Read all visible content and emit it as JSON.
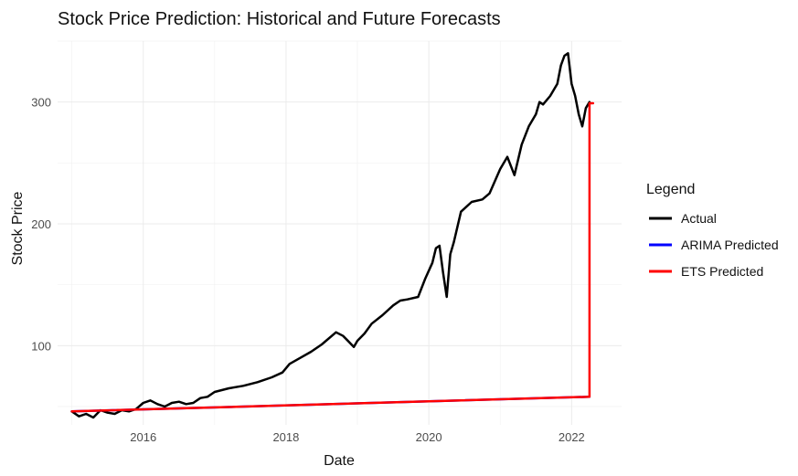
{
  "chart_data": {
    "type": "line",
    "title": "Stock Price Prediction: Historical and Future Forecasts",
    "xlabel": "Date",
    "ylabel": "Stock Price",
    "xlim": [
      2014.8,
      2022.7
    ],
    "ylim": [
      35,
      350
    ],
    "x_ticks": [
      {
        "value": 2016,
        "label": "2016"
      },
      {
        "value": 2018,
        "label": "2018"
      },
      {
        "value": 2020,
        "label": "2020"
      },
      {
        "value": 2022,
        "label": "2022"
      }
    ],
    "y_ticks": [
      {
        "value": 100,
        "label": "100"
      },
      {
        "value": 200,
        "label": "200"
      },
      {
        "value": 300,
        "label": "300"
      }
    ],
    "grid": true,
    "legend": {
      "title": "Legend",
      "position": "right"
    },
    "series": [
      {
        "name": "Actual",
        "color": "#000000",
        "x": [
          2015.0,
          2015.1,
          2015.2,
          2015.3,
          2015.4,
          2015.5,
          2015.6,
          2015.7,
          2015.8,
          2015.9,
          2016.0,
          2016.1,
          2016.2,
          2016.3,
          2016.4,
          2016.5,
          2016.6,
          2016.7,
          2016.8,
          2016.9,
          2017.0,
          2017.2,
          2017.4,
          2017.6,
          2017.8,
          2017.95,
          2018.05,
          2018.2,
          2018.35,
          2018.5,
          2018.7,
          2018.8,
          2018.9,
          2018.95,
          2019.0,
          2019.1,
          2019.2,
          2019.35,
          2019.5,
          2019.6,
          2019.7,
          2019.85,
          2019.95,
          2020.05,
          2020.1,
          2020.15,
          2020.2,
          2020.25,
          2020.3,
          2020.35,
          2020.45,
          2020.6,
          2020.75,
          2020.85,
          2021.0,
          2021.1,
          2021.2,
          2021.3,
          2021.4,
          2021.5,
          2021.55,
          2021.6,
          2021.7,
          2021.8,
          2021.85,
          2021.9,
          2021.95,
          2022.0,
          2022.05,
          2022.1,
          2022.15,
          2022.2,
          2022.25
        ],
        "y": [
          46,
          42,
          44,
          41,
          47,
          45,
          44,
          47,
          46,
          48,
          53,
          55,
          52,
          50,
          53,
          54,
          52,
          53,
          57,
          58,
          62,
          65,
          67,
          70,
          74,
          78,
          85,
          90,
          95,
          101,
          111,
          108,
          102,
          99,
          104,
          110,
          118,
          125,
          133,
          137,
          138,
          140,
          155,
          168,
          180,
          182,
          160,
          140,
          175,
          185,
          210,
          218,
          220,
          225,
          245,
          255,
          240,
          265,
          280,
          290,
          300,
          298,
          305,
          315,
          330,
          338,
          340,
          315,
          305,
          290,
          280,
          295,
          300
        ]
      },
      {
        "name": "ARIMA Predicted",
        "color": "#0000ff",
        "x": [
          2015.0,
          2022.25
        ],
        "y": [
          46,
          58
        ]
      },
      {
        "name": "ETS Predicted",
        "color": "#ff0000",
        "x": [
          2015.0,
          2022.25,
          2022.25,
          2022.3
        ],
        "y": [
          46,
          58,
          299,
          299
        ]
      }
    ]
  }
}
